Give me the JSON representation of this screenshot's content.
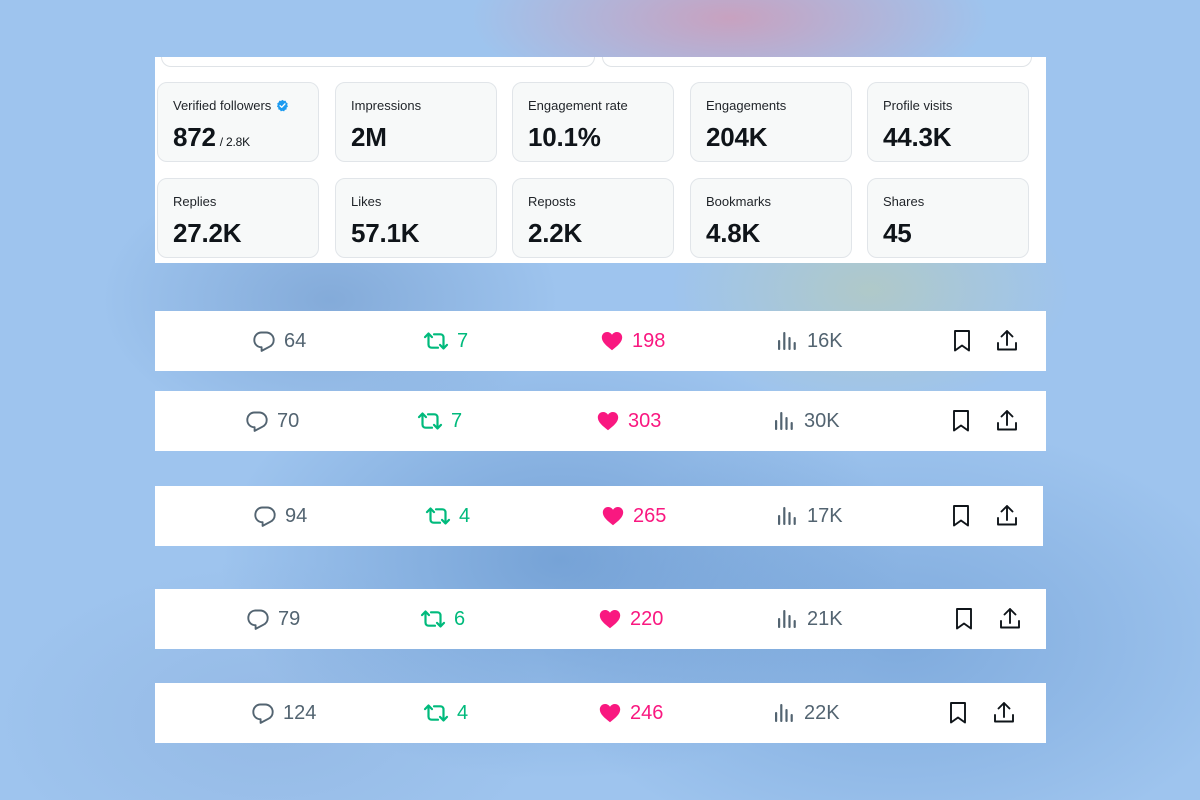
{
  "stats": [
    {
      "label": "Verified followers",
      "value": "872",
      "sub": "/ 2.8K",
      "icon": "verified-badge-icon"
    },
    {
      "label": "Impressions",
      "value": "2M"
    },
    {
      "label": "Engagement rate",
      "value": "10.1%"
    },
    {
      "label": "Engagements",
      "value": "204K"
    },
    {
      "label": "Profile visits",
      "value": "44.3K"
    },
    {
      "label": "Replies",
      "value": "27.2K"
    },
    {
      "label": "Likes",
      "value": "57.1K"
    },
    {
      "label": "Reposts",
      "value": "2.2K"
    },
    {
      "label": "Bookmarks",
      "value": "4.8K"
    },
    {
      "label": "Shares",
      "value": "45"
    }
  ],
  "colors": {
    "reply": "#536471",
    "repost": "#00ba7c",
    "like": "#f91880",
    "verified": "#1d9bf0"
  },
  "icons": [
    "reply-icon",
    "repost-icon",
    "like-heart-icon",
    "views-chart-icon",
    "bookmark-icon",
    "share-icon"
  ],
  "action_bars": [
    {
      "replies": "64",
      "reposts": "7",
      "likes": "198",
      "views": "16K"
    },
    {
      "replies": "70",
      "reposts": "7",
      "likes": "303",
      "views": "30K"
    },
    {
      "replies": "94",
      "reposts": "4",
      "likes": "265",
      "views": "17K"
    },
    {
      "replies": "79",
      "reposts": "6",
      "likes": "220",
      "views": "21K"
    },
    {
      "replies": "124",
      "reposts": "4",
      "likes": "246",
      "views": "22K"
    }
  ]
}
